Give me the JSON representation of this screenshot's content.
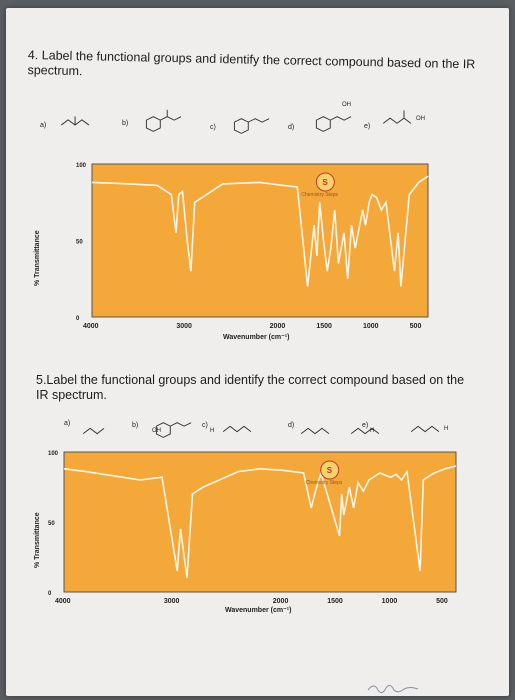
{
  "q4": {
    "title": "4. Label the functional groups and identify the correct compound based on the IR spectrum.",
    "options": [
      {
        "letter": "a)",
        "icon": "ketone-structure"
      },
      {
        "letter": "b)",
        "icon": "aryl-ketone-structure"
      },
      {
        "letter": "c)",
        "icon": "ether-structure"
      },
      {
        "letter": "d)",
        "icon": "alcohol-structure",
        "label": "OH"
      },
      {
        "letter": "e)",
        "icon": "carboxylic-acid-structure",
        "label": "OH"
      }
    ],
    "chart_data": {
      "type": "line",
      "xlabel": "Wavenumber (cm⁻¹)",
      "ylabel": "% Transmittance",
      "xlim": [
        4000,
        400
      ],
      "ylim": [
        0,
        100
      ],
      "x_ticks": [
        "4000",
        "3000",
        "2000",
        "1500",
        "1000",
        "500"
      ],
      "y_ticks": [
        "100",
        "50",
        "0"
      ],
      "series": [
        {
          "points": [
            [
              4000,
              88
            ],
            [
              3600,
              87
            ],
            [
              3300,
              86
            ],
            [
              3150,
              80
            ],
            [
              3100,
              55
            ],
            [
              3070,
              80
            ],
            [
              3030,
              82
            ],
            [
              2980,
              50
            ],
            [
              2940,
              30
            ],
            [
              2900,
              75
            ],
            [
              2600,
              87
            ],
            [
              2200,
              88
            ],
            [
              1950,
              86
            ],
            [
              1800,
              85
            ],
            [
              1690,
              20
            ],
            [
              1620,
              60
            ],
            [
              1590,
              40
            ],
            [
              1560,
              75
            ],
            [
              1520,
              50
            ],
            [
              1480,
              30
            ],
            [
              1440,
              45
            ],
            [
              1400,
              70
            ],
            [
              1360,
              35
            ],
            [
              1300,
              55
            ],
            [
              1260,
              25
            ],
            [
              1220,
              60
            ],
            [
              1180,
              45
            ],
            [
              1100,
              70
            ],
            [
              1070,
              60
            ],
            [
              1030,
              75
            ],
            [
              1000,
              80
            ],
            [
              950,
              78
            ],
            [
              900,
              70
            ],
            [
              850,
              75
            ],
            [
              760,
              30
            ],
            [
              720,
              55
            ],
            [
              690,
              20
            ],
            [
              600,
              80
            ],
            [
              500,
              88
            ],
            [
              400,
              92
            ]
          ]
        }
      ]
    }
  },
  "q5": {
    "title": "5.Label the functional groups and identify the correct compound based on the IR spectrum.",
    "options": [
      {
        "letter": "a)",
        "icon": "alkene-structure"
      },
      {
        "letter": "b)",
        "icon": "alcohol-structure",
        "label": "OH"
      },
      {
        "letter": "c)",
        "icon": "aldehyde-structure",
        "label": "H"
      },
      {
        "letter": "d)",
        "icon": "alkyne-structure"
      },
      {
        "letter": "e)",
        "icon": "aldehyde-structure",
        "label": "H"
      },
      {
        "letter": "",
        "icon": "aldehyde-structure",
        "label": "H"
      }
    ],
    "chart_data": {
      "type": "line",
      "xlabel": "Wavenumber (cm⁻¹)",
      "ylabel": "% Transmittance",
      "xlim": [
        4000,
        400
      ],
      "ylim": [
        0,
        100
      ],
      "x_ticks": [
        "4000",
        "3000",
        "2000",
        "1500",
        "1000",
        "500"
      ],
      "y_ticks": [
        "100",
        "50",
        "0"
      ],
      "series": [
        {
          "points": [
            [
              4000,
              88
            ],
            [
              3800,
              86
            ],
            [
              3300,
              80
            ],
            [
              3100,
              82
            ],
            [
              2960,
              15
            ],
            [
              2930,
              45
            ],
            [
              2870,
              10
            ],
            [
              2820,
              70
            ],
            [
              2720,
              75
            ],
            [
              2400,
              86
            ],
            [
              2200,
              88
            ],
            [
              2000,
              87
            ],
            [
              1800,
              85
            ],
            [
              1730,
              60
            ],
            [
              1690,
              72
            ],
            [
              1640,
              85
            ],
            [
              1470,
              40
            ],
            [
              1450,
              70
            ],
            [
              1430,
              55
            ],
            [
              1380,
              75
            ],
            [
              1340,
              60
            ],
            [
              1300,
              78
            ],
            [
              1250,
              72
            ],
            [
              1200,
              80
            ],
            [
              1100,
              85
            ],
            [
              1000,
              82
            ],
            [
              950,
              84
            ],
            [
              900,
              80
            ],
            [
              850,
              86
            ],
            [
              730,
              15
            ],
            [
              700,
              80
            ],
            [
              600,
              85
            ],
            [
              500,
              88
            ],
            [
              400,
              90
            ]
          ]
        }
      ]
    }
  },
  "stamp_text": "Chemistry Steps",
  "stamp_letter": "S"
}
